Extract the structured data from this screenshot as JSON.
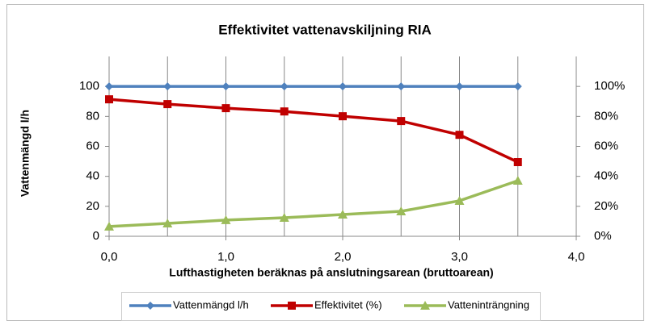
{
  "chart_data": {
    "type": "line",
    "title": "Effektivitet vattenavskiljning RIA",
    "x_label": "Lufthastigheten beräknas på anslutningsarean (bruttoarean)",
    "y_label": "Vattenmängd l/h",
    "x": [
      0,
      0.5,
      1,
      1.5,
      2,
      2.5,
      3,
      3.5
    ],
    "xlim": [
      0,
      4
    ],
    "xticks": [
      {
        "value": 0,
        "label": "0,0"
      },
      {
        "value": 1,
        "label": "1,0"
      },
      {
        "value": 2,
        "label": "2,0"
      },
      {
        "value": 3,
        "label": "3,0"
      },
      {
        "value": 4,
        "label": "4,0"
      }
    ],
    "x_minor_ticks": [
      0.5,
      1.5,
      2.5,
      3.5
    ],
    "ylim": [
      0,
      120
    ],
    "yticks": [
      0,
      20,
      40,
      60,
      80,
      100
    ],
    "y2lim": [
      0,
      120
    ],
    "y2ticks": [
      {
        "value": 0,
        "label": "0%"
      },
      {
        "value": 20,
        "label": "20%"
      },
      {
        "value": 40,
        "label": "40%"
      },
      {
        "value": 60,
        "label": "60%"
      },
      {
        "value": 80,
        "label": "80%"
      },
      {
        "value": 100,
        "label": "100%"
      }
    ],
    "grid": "x",
    "legend": "bottom",
    "series": [
      {
        "name": "Vattenmängd l/h",
        "color": "#4f81bd",
        "marker": "diamond",
        "axis": "y",
        "values": [
          100,
          100,
          100,
          100,
          100,
          100,
          100,
          100
        ]
      },
      {
        "name": "Effektivitet (%)",
        "color": "#c00000",
        "marker": "square",
        "axis": "y2",
        "values": [
          91.4,
          88.2,
          85.5,
          83.3,
          80.1,
          76.9,
          67.7,
          49.5
        ]
      },
      {
        "name": "Vatteninträngning",
        "color": "#9bbb59",
        "marker": "triangle",
        "axis": "y",
        "values": [
          6.5,
          8.6,
          10.8,
          12.4,
          14.5,
          16.7,
          23.7,
          37.1
        ]
      }
    ]
  }
}
